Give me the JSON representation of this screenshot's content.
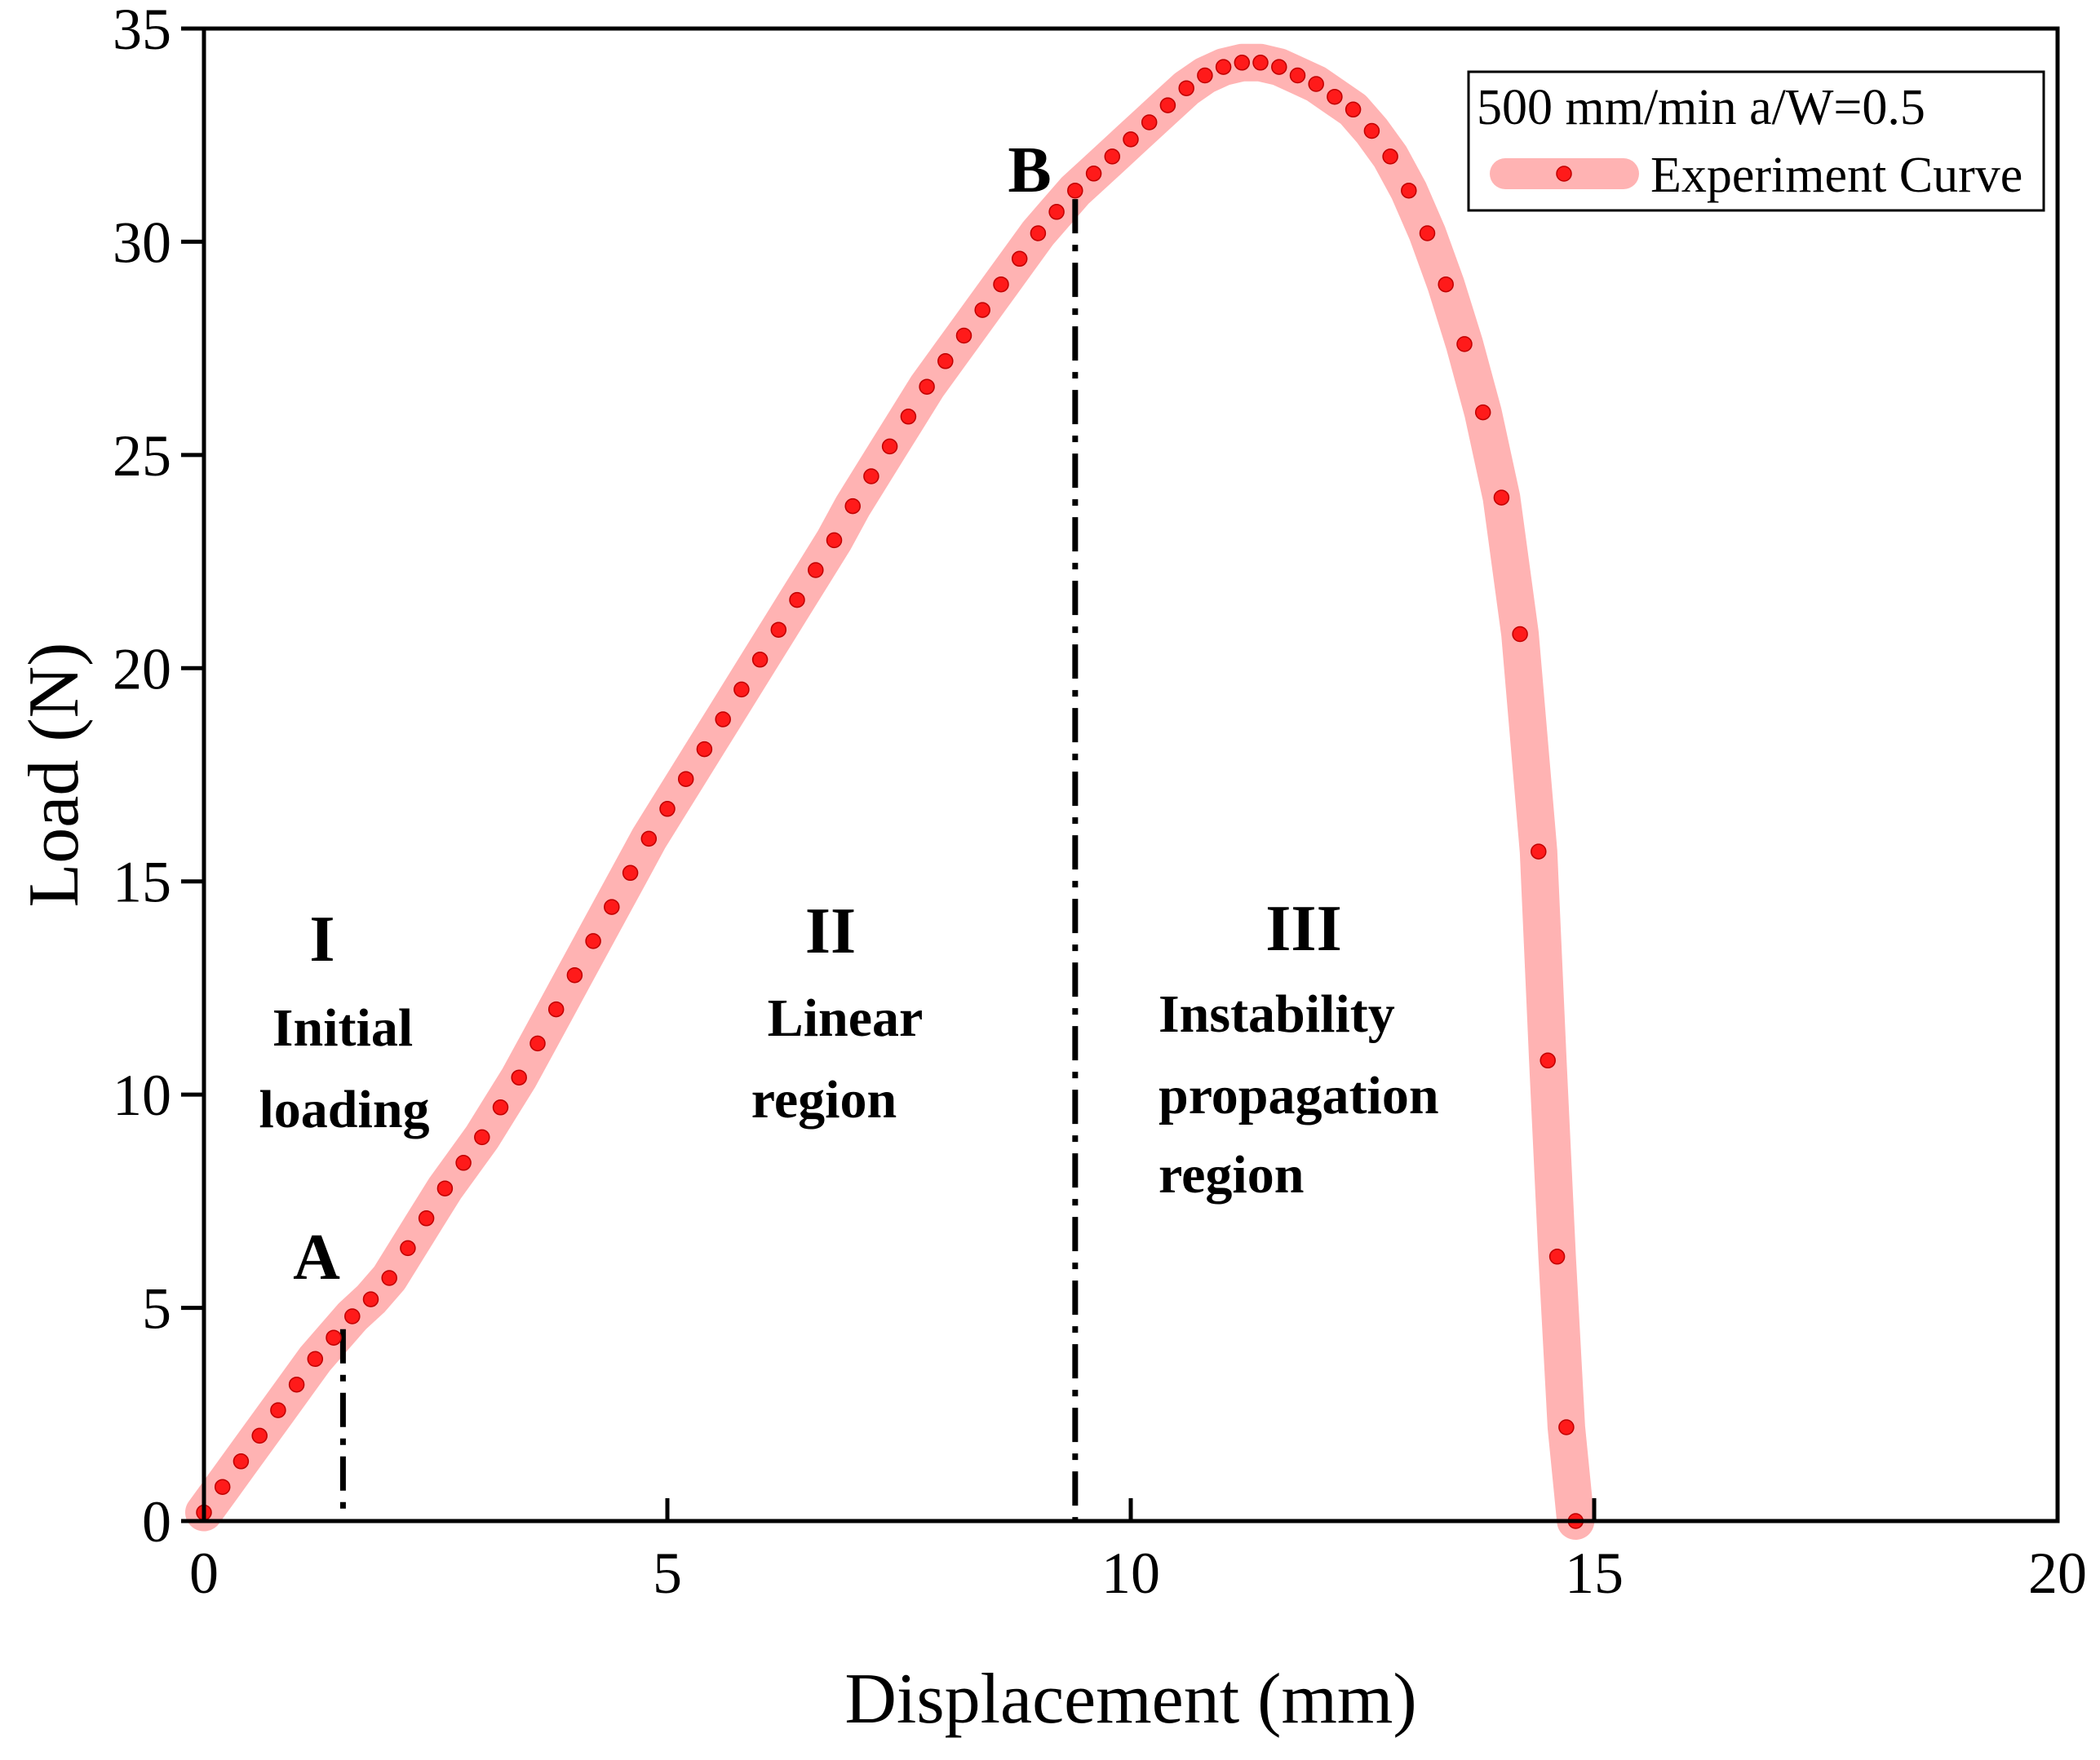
{
  "chart_data": {
    "type": "scatter",
    "title": "",
    "xlabel": "Displacement (mm)",
    "ylabel": "Load (N)",
    "xlim": [
      0,
      20
    ],
    "ylim": [
      0,
      35
    ],
    "xticks": [
      "0",
      "5",
      "10",
      "15",
      "20"
    ],
    "yticks": [
      "0",
      "5",
      "10",
      "15",
      "20",
      "25",
      "30",
      "35"
    ],
    "grid": false,
    "legend": {
      "position": "top-right",
      "title": "500 mm/min a/W=0.5",
      "entries": [
        "Experiment Curve"
      ]
    },
    "series": [
      {
        "name": "Experiment Curve",
        "marker_color": "#ff1a1a",
        "band_color": "#ffb3b3",
        "points": [
          [
            0.0,
            0.2
          ],
          [
            0.2,
            0.8
          ],
          [
            0.4,
            1.4
          ],
          [
            0.6,
            2.0
          ],
          [
            0.8,
            2.6
          ],
          [
            1.0,
            3.2
          ],
          [
            1.2,
            3.8
          ],
          [
            1.4,
            4.3
          ],
          [
            1.6,
            4.8
          ],
          [
            1.8,
            5.2
          ],
          [
            2.0,
            5.7
          ],
          [
            2.2,
            6.4
          ],
          [
            2.4,
            7.1
          ],
          [
            2.6,
            7.8
          ],
          [
            2.8,
            8.4
          ],
          [
            3.0,
            9.0
          ],
          [
            3.2,
            9.7
          ],
          [
            3.4,
            10.4
          ],
          [
            3.6,
            11.2
          ],
          [
            3.8,
            12.0
          ],
          [
            4.0,
            12.8
          ],
          [
            4.2,
            13.6
          ],
          [
            4.4,
            14.4
          ],
          [
            4.6,
            15.2
          ],
          [
            4.8,
            16.0
          ],
          [
            5.0,
            16.7
          ],
          [
            5.2,
            17.4
          ],
          [
            5.4,
            18.1
          ],
          [
            5.6,
            18.8
          ],
          [
            5.8,
            19.5
          ],
          [
            6.0,
            20.2
          ],
          [
            6.2,
            20.9
          ],
          [
            6.4,
            21.6
          ],
          [
            6.6,
            22.3
          ],
          [
            6.8,
            23.0
          ],
          [
            7.0,
            23.8
          ],
          [
            7.2,
            24.5
          ],
          [
            7.4,
            25.2
          ],
          [
            7.6,
            25.9
          ],
          [
            7.8,
            26.6
          ],
          [
            8.0,
            27.2
          ],
          [
            8.2,
            27.8
          ],
          [
            8.4,
            28.4
          ],
          [
            8.6,
            29.0
          ],
          [
            8.8,
            29.6
          ],
          [
            9.0,
            30.2
          ],
          [
            9.2,
            30.7
          ],
          [
            9.4,
            31.2
          ],
          [
            9.6,
            31.6
          ],
          [
            9.8,
            32.0
          ],
          [
            10.0,
            32.4
          ],
          [
            10.2,
            32.8
          ],
          [
            10.4,
            33.2
          ],
          [
            10.6,
            33.6
          ],
          [
            10.8,
            33.9
          ],
          [
            11.0,
            34.1
          ],
          [
            11.2,
            34.2
          ],
          [
            11.4,
            34.2
          ],
          [
            11.6,
            34.1
          ],
          [
            11.8,
            33.9
          ],
          [
            12.0,
            33.7
          ],
          [
            12.2,
            33.4
          ],
          [
            12.4,
            33.1
          ],
          [
            12.6,
            32.6
          ],
          [
            12.8,
            32.0
          ],
          [
            13.0,
            31.2
          ],
          [
            13.2,
            30.2
          ],
          [
            13.4,
            29.0
          ],
          [
            13.6,
            27.6
          ],
          [
            13.8,
            26.0
          ],
          [
            14.0,
            24.0
          ],
          [
            14.2,
            20.8
          ],
          [
            14.4,
            15.7
          ],
          [
            14.5,
            10.8
          ],
          [
            14.6,
            6.2
          ],
          [
            14.7,
            2.2
          ],
          [
            14.8,
            0.0
          ]
        ]
      }
    ],
    "reference_lines": [
      {
        "name": "A",
        "x": 1.5,
        "y_top": 4.5
      },
      {
        "name": "B",
        "x": 9.4,
        "y_top": 31.0
      }
    ],
    "annotations": {
      "point_a": "A",
      "point_b": "B",
      "region_1_numeral": "I",
      "region_1_line1": "Initial",
      "region_1_line2": "loading",
      "region_2_numeral": "II",
      "region_2_line1": "Linear",
      "region_2_line2": "region",
      "region_3_numeral": "III",
      "region_3_line1": "Instability",
      "region_3_line2": "propagation",
      "region_3_line3": "region"
    }
  }
}
